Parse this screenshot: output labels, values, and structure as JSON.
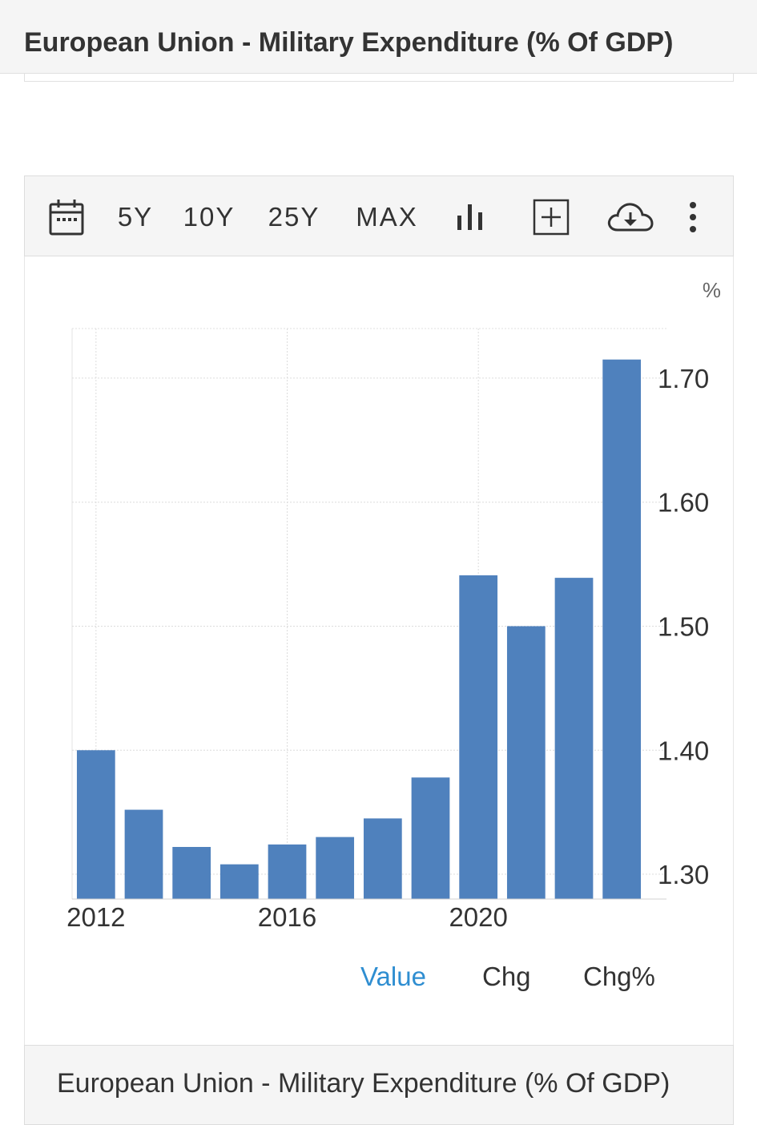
{
  "header": {
    "title": "European Union - Military Expenditure (% Of GDP)"
  },
  "toolbar": {
    "ranges": [
      "5Y",
      "10Y",
      "25Y",
      "MAX"
    ],
    "icons": [
      "calendar-icon",
      "bar-chart-icon",
      "add-box-icon",
      "cloud-download-icon",
      "more-vert-icon"
    ]
  },
  "legend_tabs": {
    "value": "Value",
    "chg": "Chg",
    "chg_pct": "Chg%"
  },
  "footer": {
    "title": "European Union - Military Expenditure (% Of GDP)"
  },
  "colors": {
    "bar": "#4f81bd",
    "active_tab": "#2f8ed1",
    "text": "#333333"
  },
  "chart_data": {
    "type": "bar",
    "unit": "%",
    "x": [
      2012,
      2013,
      2014,
      2015,
      2016,
      2017,
      2018,
      2019,
      2020,
      2021,
      2022,
      2023
    ],
    "values": [
      1.4,
      1.352,
      1.322,
      1.308,
      1.324,
      1.33,
      1.345,
      1.378,
      1.541,
      1.5,
      1.539,
      1.715
    ],
    "x_tick_labels": [
      "2012",
      "2016",
      "2020"
    ],
    "y_tick_labels": [
      "1.30",
      "1.40",
      "1.50",
      "1.60",
      "1.70"
    ],
    "ylim": [
      1.28,
      1.74
    ],
    "y_axis_position": "right",
    "grid": true,
    "legend": false
  }
}
